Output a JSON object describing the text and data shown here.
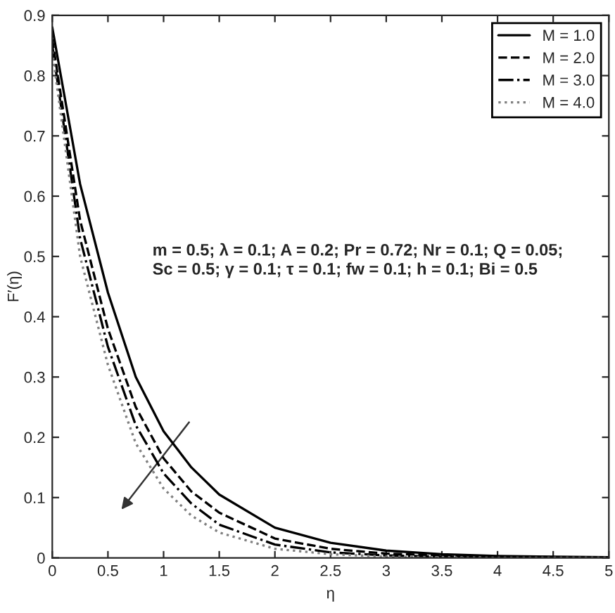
{
  "chart_data": {
    "type": "line",
    "xlabel": "η",
    "ylabel": "F′(η)",
    "xlim": [
      0,
      5
    ],
    "ylim": [
      0,
      0.9
    ],
    "xticks": [
      0,
      0.5,
      1,
      1.5,
      2,
      2.5,
      3,
      3.5,
      4,
      4.5,
      5
    ],
    "yticks": [
      0,
      0.1,
      0.2,
      0.3,
      0.4,
      0.5,
      0.6,
      0.7,
      0.8,
      0.9
    ],
    "x": [
      0,
      0.25,
      0.5,
      0.75,
      1,
      1.25,
      1.5,
      2,
      2.5,
      3,
      3.5,
      4,
      5
    ],
    "series": [
      {
        "name": "M = 1.0",
        "color": "#000000",
        "line_style": "solid",
        "values": [
          0.88,
          0.62,
          0.44,
          0.3,
          0.21,
          0.15,
          0.105,
          0.05,
          0.025,
          0.012,
          0.006,
          0.003,
          0.001
        ]
      },
      {
        "name": "M = 2.0",
        "color": "#000000",
        "line_style": "dashed",
        "values": [
          0.86,
          0.56,
          0.38,
          0.25,
          0.165,
          0.11,
          0.075,
          0.032,
          0.015,
          0.007,
          0.004,
          0.002,
          0
        ]
      },
      {
        "name": "M = 3.0",
        "color": "#000000",
        "line_style": "dashdot",
        "values": [
          0.85,
          0.53,
          0.35,
          0.22,
          0.14,
          0.09,
          0.055,
          0.022,
          0.009,
          0.004,
          0.002,
          0.001,
          0
        ]
      },
      {
        "name": "M = 4.0",
        "color": "#808080",
        "line_style": "dotted",
        "values": [
          0.84,
          0.5,
          0.32,
          0.19,
          0.115,
          0.07,
          0.042,
          0.015,
          0.006,
          0.002,
          0.001,
          0,
          0
        ]
      }
    ],
    "annotations": [
      "m = 0.5; λ = 0.1; A = 0.2; Pr = 0.72; Nr = 0.1; Q = 0.05;\nSc = 0.5; γ = 0.1; τ = 0.1; fw = 0.1; h = 0.1; Bi = 0.5"
    ],
    "legend": "top right",
    "grid": false
  }
}
